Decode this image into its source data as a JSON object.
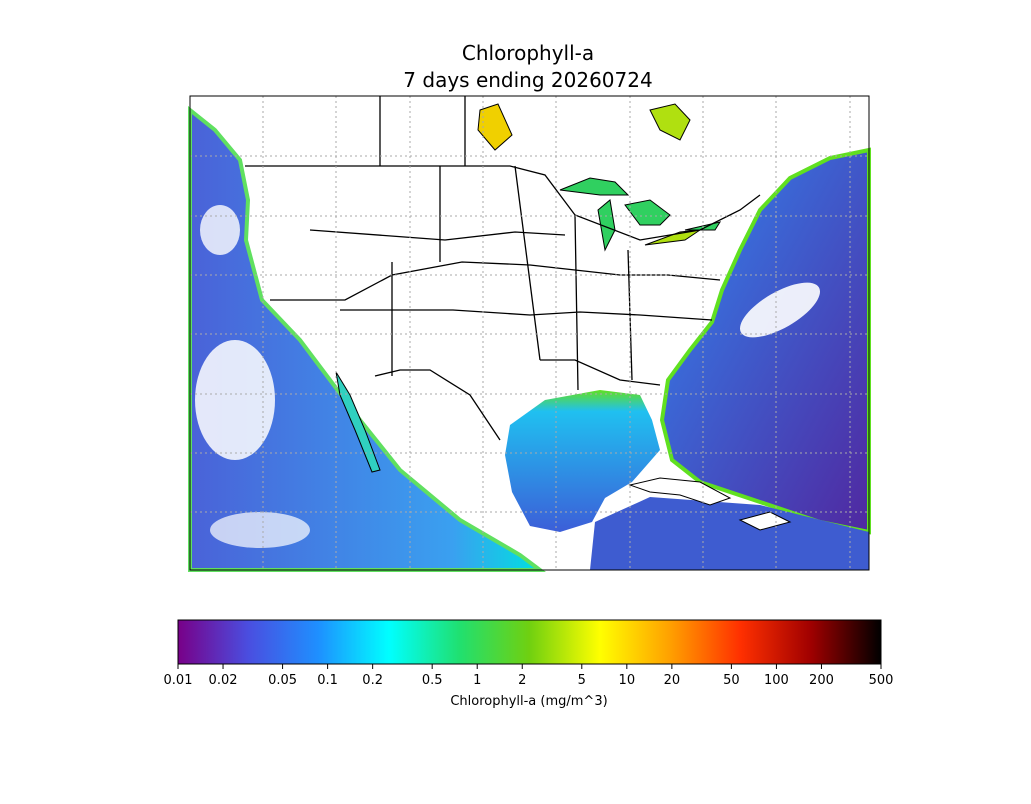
{
  "title": "Chlorophyll-a",
  "subtitle": "7 days ending 20260724",
  "colorbar": {
    "label": "Chlorophyll-a (mg/m^3)",
    "lim": [
      0.01,
      500
    ],
    "log": true,
    "ticks": [
      0.01,
      0.02,
      0.05,
      0.1,
      0.2,
      0.5,
      1,
      2,
      5,
      10,
      20,
      50,
      100,
      200,
      500
    ],
    "colors": [
      "#780088",
      "#4a4ee0",
      "#1e90ff",
      "#00ffff",
      "#20e070",
      "#70d010",
      "#ffff00",
      "#ffa000",
      "#ff3000",
      "#a00000",
      "#000000"
    ]
  }
}
